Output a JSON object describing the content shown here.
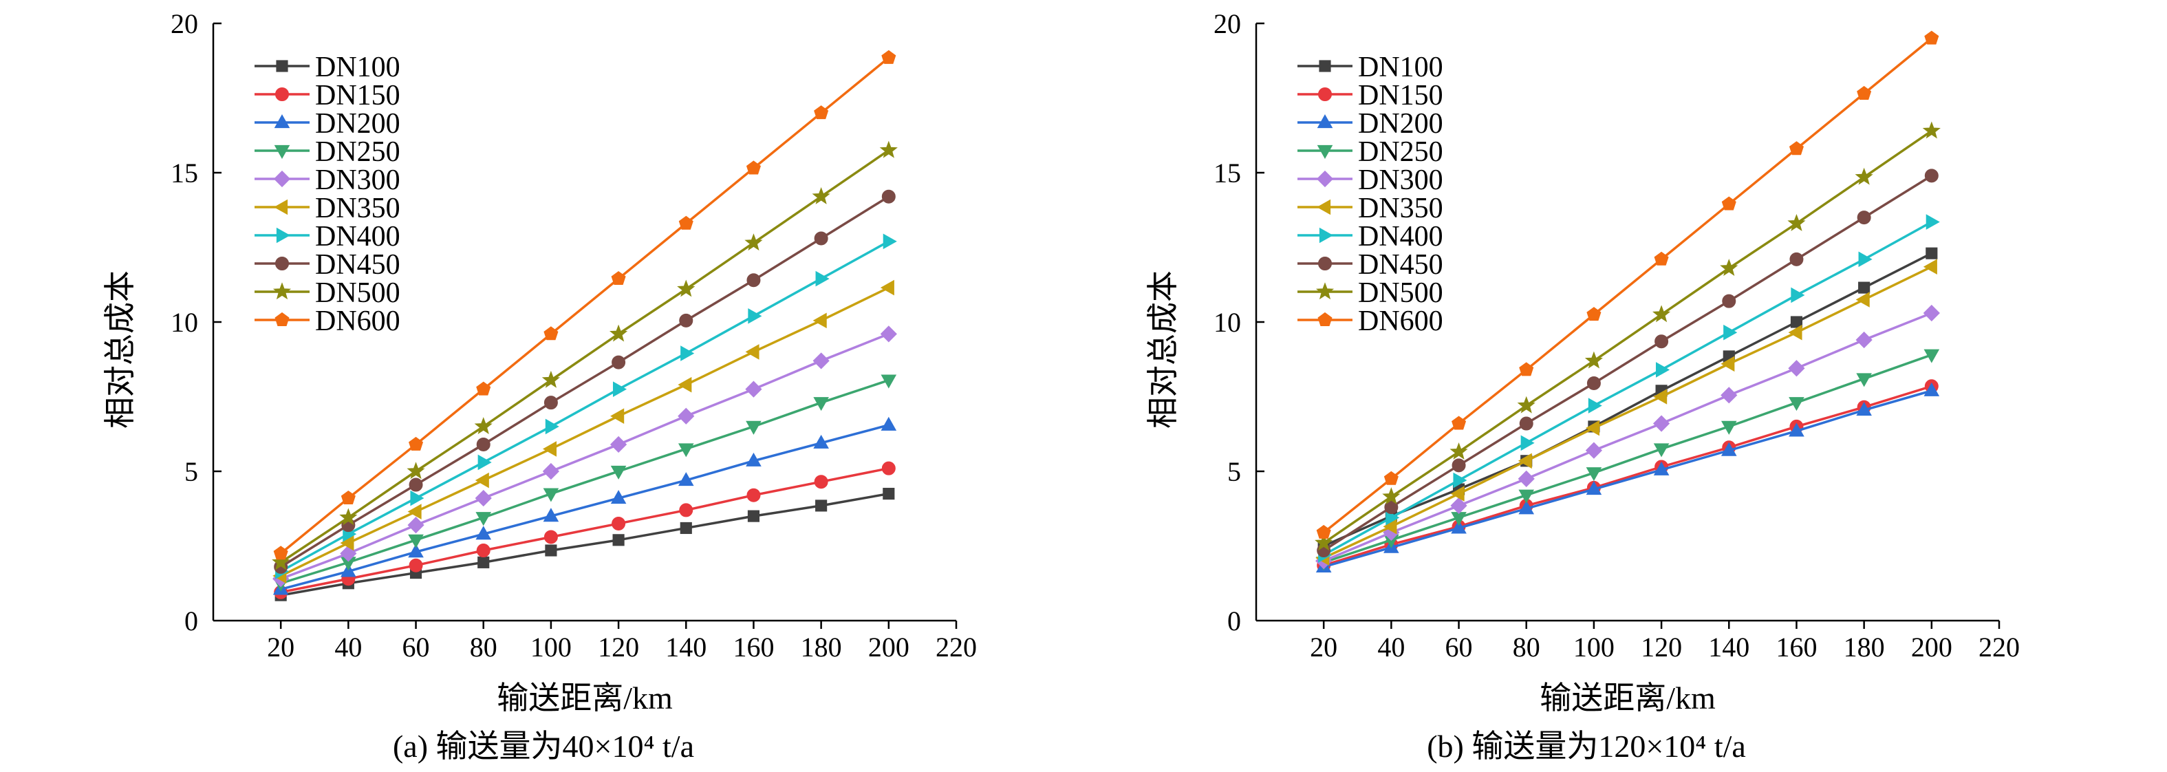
{
  "chart_data": [
    {
      "type": "line",
      "caption": "(a) 输送量为40×10⁴ t/a",
      "xlabel": "输送距离/km",
      "ylabel": "相对总成本",
      "xlim": [
        0,
        220
      ],
      "ylim": [
        0,
        20
      ],
      "xticks": [
        20,
        40,
        60,
        80,
        100,
        120,
        140,
        160,
        180,
        200,
        220
      ],
      "yticks": [
        0,
        5,
        10,
        15,
        20
      ],
      "grid": false,
      "legend_position": "top-left",
      "x": [
        20,
        40,
        60,
        80,
        100,
        120,
        140,
        160,
        180,
        200
      ],
      "series": [
        {
          "name": "DN100",
          "color": "#404040",
          "marker": "square",
          "values": [
            0.85,
            1.25,
            1.6,
            1.95,
            2.35,
            2.7,
            3.1,
            3.5,
            3.85,
            4.25
          ]
        },
        {
          "name": "DN150",
          "color": "#e8383d",
          "marker": "circle",
          "values": [
            0.95,
            1.4,
            1.85,
            2.35,
            2.8,
            3.25,
            3.7,
            4.2,
            4.65,
            5.1
          ]
        },
        {
          "name": "DN200",
          "color": "#2d6fd6",
          "marker": "triangle-up",
          "values": [
            1.05,
            1.65,
            2.3,
            2.9,
            3.5,
            4.1,
            4.7,
            5.35,
            5.95,
            6.55
          ]
        },
        {
          "name": "DN250",
          "color": "#3ba66f",
          "marker": "triangle-down",
          "values": [
            1.25,
            1.95,
            2.7,
            3.45,
            4.25,
            5.0,
            5.75,
            6.5,
            7.3,
            8.05
          ]
        },
        {
          "name": "DN300",
          "color": "#b07fe0",
          "marker": "diamond",
          "values": [
            1.4,
            2.25,
            3.2,
            4.1,
            5.0,
            5.9,
            6.85,
            7.75,
            8.7,
            9.6
          ]
        },
        {
          "name": "DN350",
          "color": "#c9a10f",
          "marker": "triangle-left",
          "values": [
            1.5,
            2.6,
            3.65,
            4.7,
            5.75,
            6.85,
            7.9,
            9.0,
            10.05,
            11.15
          ]
        },
        {
          "name": "DN400",
          "color": "#1fc0c8",
          "marker": "triangle-right",
          "values": [
            1.65,
            2.9,
            4.1,
            5.3,
            6.5,
            7.75,
            8.95,
            10.2,
            11.45,
            12.7
          ]
        },
        {
          "name": "DN450",
          "color": "#7a4a45",
          "marker": "circle",
          "values": [
            1.8,
            3.2,
            4.55,
            5.9,
            7.3,
            8.65,
            10.05,
            11.4,
            12.8,
            14.2
          ]
        },
        {
          "name": "DN500",
          "color": "#8a8a10",
          "marker": "star",
          "values": [
            1.95,
            3.45,
            5.0,
            6.5,
            8.05,
            9.6,
            11.1,
            12.65,
            14.2,
            15.75
          ]
        },
        {
          "name": "DN600",
          "color": "#f26b10",
          "marker": "pentagon",
          "values": [
            2.25,
            4.1,
            5.9,
            7.75,
            9.6,
            11.45,
            13.3,
            15.15,
            17.0,
            18.85
          ]
        }
      ]
    },
    {
      "type": "line",
      "caption": "(b) 输送量为120×10⁴ t/a",
      "xlabel": "输送距离/km",
      "ylabel": "相对总成本",
      "xlim": [
        0,
        220
      ],
      "ylim": [
        0,
        20
      ],
      "xticks": [
        20,
        40,
        60,
        80,
        100,
        120,
        140,
        160,
        180,
        200,
        220
      ],
      "yticks": [
        0,
        5,
        10,
        15,
        20
      ],
      "grid": false,
      "legend_position": "top-left",
      "x": [
        20,
        40,
        60,
        80,
        100,
        120,
        140,
        160,
        180,
        200
      ],
      "series": [
        {
          "name": "DN100",
          "color": "#404040",
          "marker": "square",
          "values": [
            2.5,
            3.5,
            4.4,
            5.35,
            6.5,
            7.7,
            8.85,
            10.0,
            11.15,
            12.3
          ]
        },
        {
          "name": "DN150",
          "color": "#e8383d",
          "marker": "circle",
          "values": [
            1.85,
            2.55,
            3.15,
            3.85,
            4.45,
            5.15,
            5.8,
            6.5,
            7.15,
            7.85
          ]
        },
        {
          "name": "DN200",
          "color": "#2d6fd6",
          "marker": "triangle-up",
          "values": [
            1.8,
            2.45,
            3.1,
            3.75,
            4.4,
            5.05,
            5.7,
            6.35,
            7.05,
            7.7
          ]
        },
        {
          "name": "DN250",
          "color": "#3ba66f",
          "marker": "triangle-down",
          "values": [
            1.95,
            2.7,
            3.45,
            4.2,
            4.95,
            5.75,
            6.5,
            7.3,
            8.1,
            8.9
          ]
        },
        {
          "name": "DN300",
          "color": "#b07fe0",
          "marker": "diamond",
          "values": [
            2.0,
            2.95,
            3.85,
            4.75,
            5.7,
            6.6,
            7.55,
            8.45,
            9.4,
            10.3
          ]
        },
        {
          "name": "DN350",
          "color": "#c9a10f",
          "marker": "triangle-left",
          "values": [
            2.1,
            3.15,
            4.25,
            5.35,
            6.45,
            7.5,
            8.6,
            9.65,
            10.75,
            11.85
          ]
        },
        {
          "name": "DN400",
          "color": "#1fc0c8",
          "marker": "triangle-right",
          "values": [
            2.2,
            3.45,
            4.7,
            5.95,
            7.2,
            8.4,
            9.65,
            10.9,
            12.1,
            13.35
          ]
        },
        {
          "name": "DN450",
          "color": "#7a4a45",
          "marker": "circle",
          "values": [
            2.35,
            3.8,
            5.2,
            6.6,
            7.95,
            9.35,
            10.7,
            12.1,
            13.5,
            14.9
          ]
        },
        {
          "name": "DN500",
          "color": "#8a8a10",
          "marker": "star",
          "values": [
            2.6,
            4.15,
            5.65,
            7.2,
            8.7,
            10.25,
            11.8,
            13.3,
            14.85,
            16.4
          ]
        },
        {
          "name": "DN600",
          "color": "#f26b10",
          "marker": "pentagon",
          "values": [
            2.95,
            4.75,
            6.6,
            8.4,
            10.25,
            12.1,
            13.95,
            15.8,
            17.65,
            19.5
          ]
        }
      ]
    }
  ]
}
